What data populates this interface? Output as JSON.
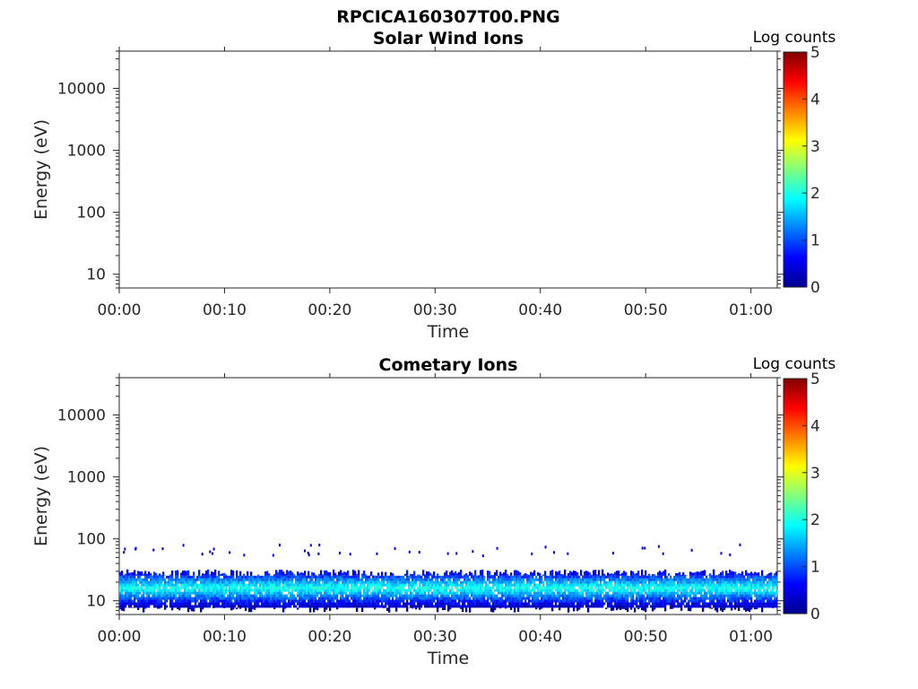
{
  "figure_title": "RPCICA160307T00.PNG",
  "colorbar": {
    "label": "Log counts",
    "ticks": [
      "0",
      "1",
      "2",
      "3",
      "4",
      "5"
    ],
    "range": [
      0,
      5
    ],
    "colormap": "jet"
  },
  "chart_data": [
    {
      "type": "heatmap",
      "title": "Solar Wind Ions",
      "xlabel": "Time",
      "ylabel": "Energy (eV)",
      "x_ticks": [
        "00:00",
        "00:10",
        "00:20",
        "00:30",
        "00:40",
        "00:50",
        "01:00"
      ],
      "xlim_minutes": [
        0,
        62.5
      ],
      "y_ticks": [
        "10",
        "100",
        "1000",
        "10000"
      ],
      "y_scale": "log",
      "ylim": [
        6,
        40000
      ],
      "bands": []
    },
    {
      "type": "heatmap",
      "title": "Cometary Ions",
      "xlabel": "Time",
      "ylabel": "Energy (eV)",
      "x_ticks": [
        "00:00",
        "00:10",
        "00:20",
        "00:30",
        "00:40",
        "00:50",
        "01:00"
      ],
      "xlim_minutes": [
        0,
        62.5
      ],
      "y_ticks": [
        "10",
        "100",
        "1000",
        "10000"
      ],
      "y_scale": "log",
      "ylim": [
        6,
        40000
      ],
      "bands": [
        {
          "t_start_minutes": 0,
          "t_end_minutes": 62.5,
          "energy_min_eV": 7,
          "energy_max_eV": 28,
          "peak_energy_eV": 16,
          "peak_log_counts": 2.0
        }
      ],
      "sparse_counts": {
        "energy_range_eV": [
          55,
          85
        ],
        "log_counts": 0.3
      }
    }
  ]
}
